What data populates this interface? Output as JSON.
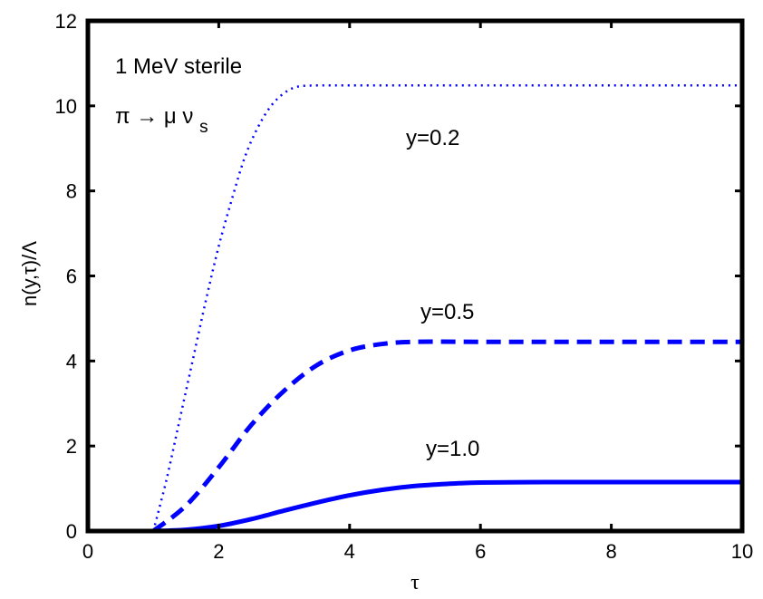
{
  "chart_data": {
    "type": "line",
    "xlabel": "τ",
    "ylabel": "n(y,τ)/Λ",
    "xlim": [
      0,
      10
    ],
    "ylim": [
      0,
      12
    ],
    "x_ticks": [
      "0",
      "2",
      "4",
      "6",
      "8",
      "10"
    ],
    "y_ticks": [
      "0",
      "2",
      "4",
      "6",
      "8",
      "10",
      "12"
    ],
    "grid": false,
    "legend": "none",
    "line_color": "#0000ff",
    "annotations": {
      "title_line1": "1 MeV sterile",
      "decay_main": "π → μ ν",
      "decay_sub": "s"
    },
    "series": [
      {
        "label": "y=0.2",
        "style": "dotted",
        "x": [
          1.0,
          1.2,
          1.4,
          1.6,
          1.8,
          2.0,
          2.2,
          2.4,
          2.6,
          2.8,
          3.0,
          3.2,
          3.5,
          4.0,
          5.0,
          6.0,
          8.0,
          10.0
        ],
        "y": [
          0.0,
          1.2,
          2.6,
          4.0,
          5.4,
          6.7,
          7.8,
          8.8,
          9.5,
          10.0,
          10.3,
          10.45,
          10.48,
          10.48,
          10.48,
          10.48,
          10.48,
          10.48
        ]
      },
      {
        "label": "y=0.5",
        "style": "dashed",
        "x": [
          1.0,
          1.5,
          2.0,
          2.5,
          3.0,
          3.5,
          4.0,
          4.5,
          5.0,
          6.0,
          7.0,
          8.0,
          9.0,
          10.0
        ],
        "y": [
          0.0,
          0.6,
          1.5,
          2.5,
          3.3,
          3.9,
          4.25,
          4.4,
          4.45,
          4.45,
          4.45,
          4.45,
          4.45,
          4.45
        ]
      },
      {
        "label": "y=1.0",
        "style": "solid",
        "x": [
          1.0,
          1.5,
          2.0,
          2.5,
          3.0,
          3.5,
          4.0,
          4.5,
          5.0,
          5.5,
          6.0,
          7.0,
          8.0,
          9.0,
          10.0
        ],
        "y": [
          0.0,
          0.03,
          0.12,
          0.28,
          0.48,
          0.67,
          0.84,
          0.97,
          1.06,
          1.11,
          1.14,
          1.15,
          1.15,
          1.15,
          1.15
        ]
      }
    ]
  }
}
